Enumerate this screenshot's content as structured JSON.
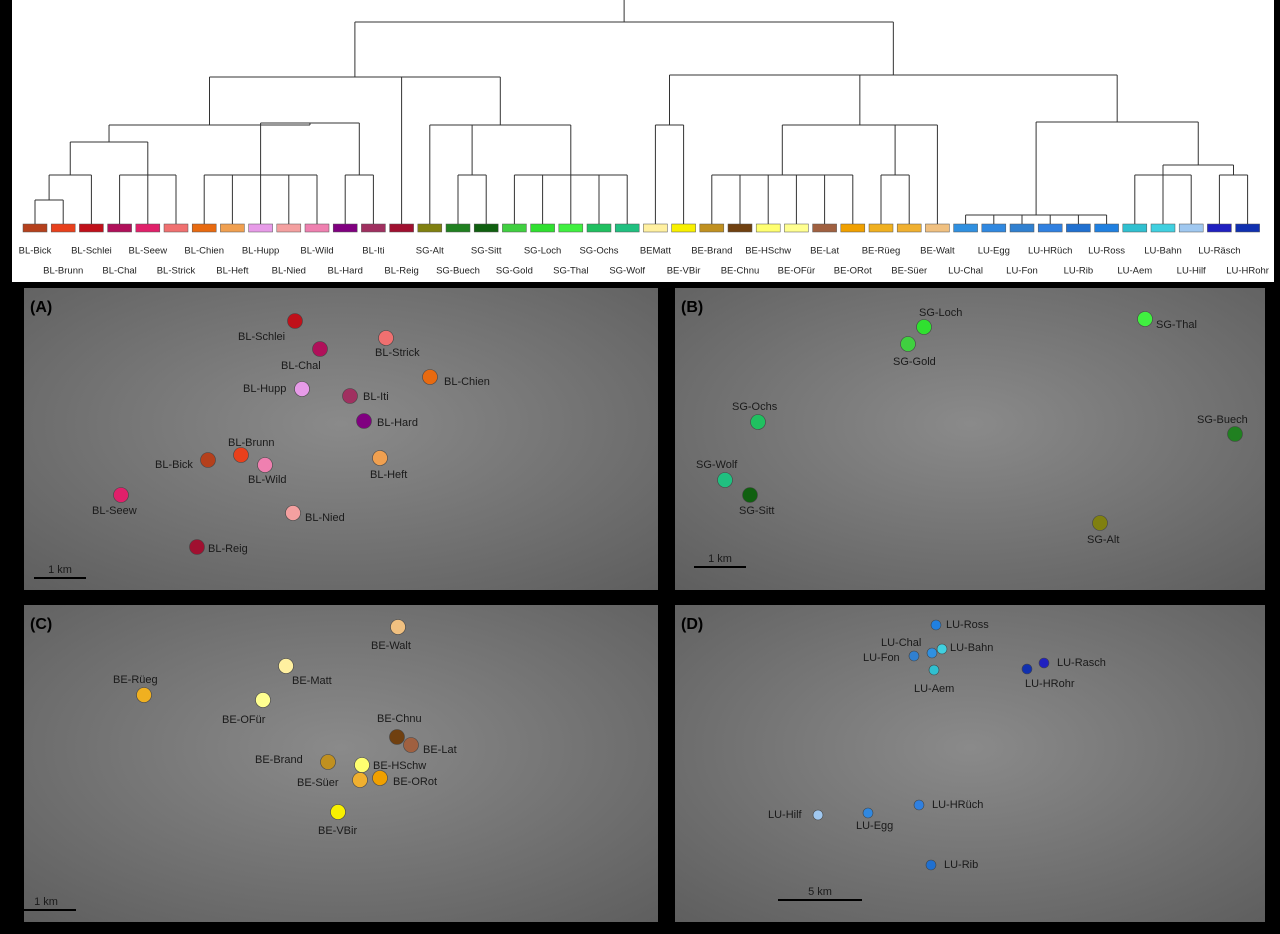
{
  "dendrogram": {
    "leaves": [
      {
        "name": "BL-Bick",
        "color": "#b5401c"
      },
      {
        "name": "BL-Brunn",
        "color": "#e8401c"
      },
      {
        "name": "BL-Schlei",
        "color": "#c0101a"
      },
      {
        "name": "BL-Chal",
        "color": "#b0105a"
      },
      {
        "name": "BL-Seew",
        "color": "#e0206a"
      },
      {
        "name": "BL-Strick",
        "color": "#f07070"
      },
      {
        "name": "BL-Chien",
        "color": "#e86a10"
      },
      {
        "name": "BL-Heft",
        "color": "#f0a050"
      },
      {
        "name": "BL-Hupp",
        "color": "#e79be8"
      },
      {
        "name": "BL-Nied",
        "color": "#f4a0a0"
      },
      {
        "name": "BL-Wild",
        "color": "#ef80b0"
      },
      {
        "name": "BL-Hard",
        "color": "#800080"
      },
      {
        "name": "BL-Iti",
        "color": "#a03060"
      },
      {
        "name": "BL-Reig",
        "color": "#a01030"
      },
      {
        "name": "SG-Alt",
        "color": "#808010"
      },
      {
        "name": "SG-Buech",
        "color": "#208020"
      },
      {
        "name": "SG-Sitt",
        "color": "#106010"
      },
      {
        "name": "SG-Gold",
        "color": "#40d040"
      },
      {
        "name": "SG-Loch",
        "color": "#30e030"
      },
      {
        "name": "SG-Thal",
        "color": "#40f040"
      },
      {
        "name": "SG-Ochs",
        "color": "#20c060"
      },
      {
        "name": "SG-Wolf",
        "color": "#20c080"
      },
      {
        "name": "BEMatt",
        "color": "#fff0a0"
      },
      {
        "name": "BE-VBir",
        "color": "#f8f000"
      },
      {
        "name": "BE-Brand",
        "color": "#c09020"
      },
      {
        "name": "BE-Chnu",
        "color": "#704010"
      },
      {
        "name": "BE-HSchw",
        "color": "#ffff70"
      },
      {
        "name": "BE-OFür",
        "color": "#ffff90"
      },
      {
        "name": "BE-Lat",
        "color": "#a06040"
      },
      {
        "name": "BE-ORot",
        "color": "#f0a000"
      },
      {
        "name": "BE-Rüeg",
        "color": "#f0b020"
      },
      {
        "name": "BE-Süer",
        "color": "#f0b030"
      },
      {
        "name": "BE-Walt",
        "color": "#f0c080"
      },
      {
        "name": "LU-Chal",
        "color": "#3090e0"
      },
      {
        "name": "LU-Egg",
        "color": "#3088e0"
      },
      {
        "name": "LU-Fon",
        "color": "#3080d0"
      },
      {
        "name": "LU-HRüch",
        "color": "#3080e0"
      },
      {
        "name": "LU-Rib",
        "color": "#2070d0"
      },
      {
        "name": "LU-Ross",
        "color": "#2080e0"
      },
      {
        "name": "LU-Aem",
        "color": "#30c0d0"
      },
      {
        "name": "LU-Bahn",
        "color": "#40d0e0"
      },
      {
        "name": "LU-Hilf",
        "color": "#a0c8f0"
      },
      {
        "name": "LU-Räsch",
        "color": "#2020c0"
      },
      {
        "name": "LU-HRohr",
        "color": "#1030b0"
      }
    ]
  },
  "panels": [
    {
      "label": "(A)",
      "scale": "1 km",
      "sites": [
        {
          "name": "BL-Schlei",
          "color": "#c0101a"
        },
        {
          "name": "BL-Chal",
          "color": "#b0105a"
        },
        {
          "name": "BL-Strick",
          "color": "#f07070"
        },
        {
          "name": "BL-Chien",
          "color": "#e86a10"
        },
        {
          "name": "BL-Hupp",
          "color": "#e79be8"
        },
        {
          "name": "BL-Iti",
          "color": "#a03060"
        },
        {
          "name": "BL-Hard",
          "color": "#800080"
        },
        {
          "name": "BL-Brunn",
          "color": "#e8401c"
        },
        {
          "name": "BL-Bick",
          "color": "#b5401c"
        },
        {
          "name": "BL-Wild",
          "color": "#ef80b0"
        },
        {
          "name": "BL-Heft",
          "color": "#f0a050"
        },
        {
          "name": "BL-Seew",
          "color": "#e0206a"
        },
        {
          "name": "BL-Nied",
          "color": "#f4a0a0"
        },
        {
          "name": "BL-Reig",
          "color": "#a01030"
        }
      ]
    },
    {
      "label": "(B)",
      "scale": "1 km",
      "sites": [
        {
          "name": "SG-Loch",
          "color": "#30e030"
        },
        {
          "name": "SG-Thal",
          "color": "#40f040"
        },
        {
          "name": "SG-Gold",
          "color": "#40d040"
        },
        {
          "name": "SG-Ochs",
          "color": "#20c060"
        },
        {
          "name": "SG-Buech",
          "color": "#208020"
        },
        {
          "name": "SG-Wolf",
          "color": "#20c080"
        },
        {
          "name": "SG-Sitt",
          "color": "#106010"
        },
        {
          "name": "SG-Alt",
          "color": "#808010"
        }
      ]
    },
    {
      "label": "(C)",
      "scale": "1 km",
      "sites": [
        {
          "name": "BE-Walt",
          "color": "#f0c080"
        },
        {
          "name": "BE-Rüeg",
          "color": "#f0b020"
        },
        {
          "name": "BE-Matt",
          "color": "#fff0a0"
        },
        {
          "name": "BE-OFür",
          "color": "#ffff90"
        },
        {
          "name": "BE-Chnu",
          "color": "#704010"
        },
        {
          "name": "BE-Lat",
          "color": "#a06040"
        },
        {
          "name": "BE-Brand",
          "color": "#c09020"
        },
        {
          "name": "BE-HSchw",
          "color": "#ffff70"
        },
        {
          "name": "BE-Süer",
          "color": "#f0b030"
        },
        {
          "name": "BE-ORot",
          "color": "#f0a000"
        },
        {
          "name": "BE-VBir",
          "color": "#f8f000"
        }
      ]
    },
    {
      "label": "(D)",
      "scale": "5 km",
      "sites": [
        {
          "name": "LU-Ross",
          "color": "#2080e0"
        },
        {
          "name": "LU-Chal",
          "color": "#3090e0"
        },
        {
          "name": "LU-Bahn",
          "color": "#40d0e0"
        },
        {
          "name": "LU-Fon",
          "color": "#3080d0"
        },
        {
          "name": "LU-Rasch",
          "color": "#2020c0"
        },
        {
          "name": "LU-HRohr",
          "color": "#1030b0"
        },
        {
          "name": "LU-Aem",
          "color": "#30c0d0"
        },
        {
          "name": "LU-Hilf",
          "color": "#a0c8f0"
        },
        {
          "name": "LU-Egg",
          "color": "#3088e0"
        },
        {
          "name": "LU-HRüch",
          "color": "#3080e0"
        },
        {
          "name": "LU-Rib",
          "color": "#2070d0"
        }
      ]
    }
  ]
}
